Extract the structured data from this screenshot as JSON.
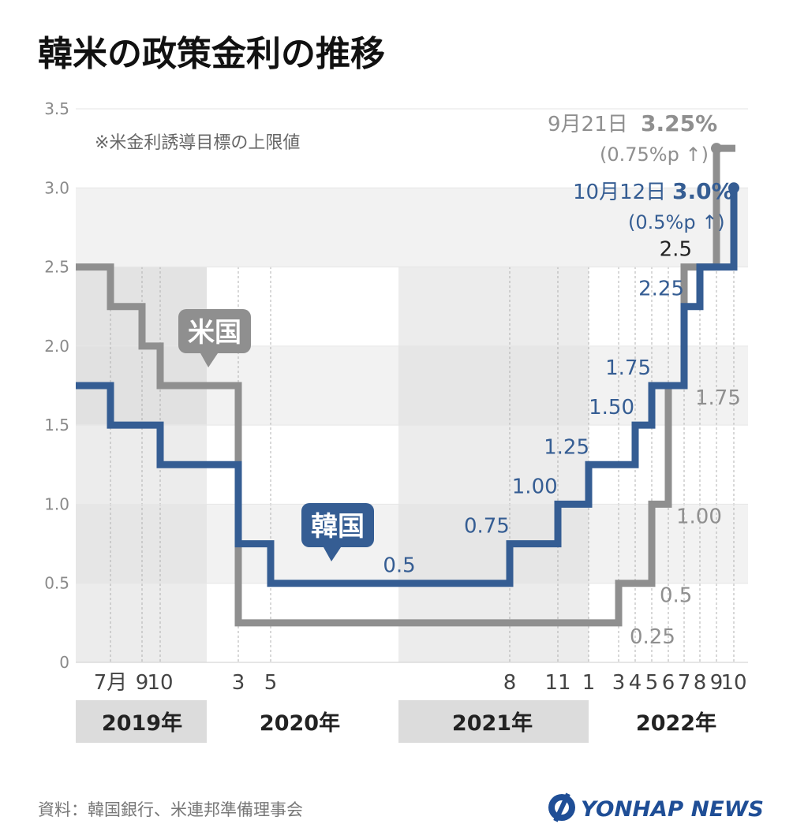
{
  "header": {
    "title": "韓米の政策金利の推移",
    "note": "※米金利誘導目標の上限値"
  },
  "footer": {
    "source": "資料：韓国銀行、米連邦準備理事会",
    "logo_text": "YONHAP NEWS"
  },
  "colors": {
    "korea": "#355d93",
    "us": "#8f8f8f",
    "band_light": "#f2f2f2",
    "band_shade": "#dcdcdc",
    "axis_text": "#8a8a8a"
  },
  "chart_data": {
    "type": "line",
    "step": "post",
    "x_unit": "month",
    "xlim": [
      "2019-01",
      "2022-10"
    ],
    "ylim": [
      0,
      3.5
    ],
    "y_ticks": [
      "0",
      "0.5",
      "1.0",
      "1.5",
      "2.0",
      "2.5",
      "3.0",
      "3.5"
    ],
    "x_tick_labels": [
      {
        "date": "2019-07",
        "label": "7月"
      },
      {
        "date": "2019-09",
        "label": "9"
      },
      {
        "date": "2019-10",
        "label": "10"
      },
      {
        "date": "2020-03",
        "label": "3"
      },
      {
        "date": "2020-05",
        "label": "5"
      },
      {
        "date": "2021-08",
        "label": "8"
      },
      {
        "date": "2021-11",
        "label": "11"
      },
      {
        "date": "2022-01",
        "label": "1"
      },
      {
        "date": "2022-03",
        "label": "3"
      },
      {
        "date": "2022-04",
        "label": "4"
      },
      {
        "date": "2022-05",
        "label": "5"
      },
      {
        "date": "2022-06",
        "label": "6"
      },
      {
        "date": "2022-07",
        "label": "7"
      },
      {
        "date": "2022-08",
        "label": "8"
      },
      {
        "date": "2022-09",
        "label": "9"
      },
      {
        "date": "2022-10",
        "label": "10"
      }
    ],
    "year_labels": [
      {
        "year": "2019年",
        "from": "2019-01",
        "to": "2019-12"
      },
      {
        "year": "2020年",
        "from": "2020-01",
        "to": "2020-12"
      },
      {
        "year": "2021年",
        "from": "2021-01",
        "to": "2021-12"
      },
      {
        "year": "2022年",
        "from": "2022-01",
        "to": "2022-10"
      }
    ],
    "series": [
      {
        "name": "米国",
        "points": [
          {
            "x": "2019-01",
            "y": 2.5
          },
          {
            "x": "2019-07",
            "y": 2.25
          },
          {
            "x": "2019-09",
            "y": 2.0
          },
          {
            "x": "2019-10",
            "y": 1.75
          },
          {
            "x": "2020-03",
            "y": 0.25
          },
          {
            "x": "2022-03",
            "y": 0.5
          },
          {
            "x": "2022-05",
            "y": 1.0
          },
          {
            "x": "2022-06",
            "y": 1.75
          },
          {
            "x": "2022-07",
            "y": 2.5
          },
          {
            "x": "2022-09",
            "y": 3.25
          }
        ],
        "labels": [
          {
            "x": "2022-03",
            "y": 0.25,
            "text": "0.25"
          },
          {
            "x": "2022-05",
            "y": 0.5,
            "text": "0.5"
          },
          {
            "x": "2022-06",
            "y": 1.0,
            "text": "1.00"
          },
          {
            "x": "2022-07",
            "y": 1.75,
            "text": "1.75"
          }
        ],
        "end_label": {
          "date": "9月21日",
          "value": "3.25%",
          "change": "(0.75%p ↑)"
        }
      },
      {
        "name": "韓国",
        "points": [
          {
            "x": "2019-01",
            "y": 1.75
          },
          {
            "x": "2019-07",
            "y": 1.5
          },
          {
            "x": "2019-10",
            "y": 1.25
          },
          {
            "x": "2020-03",
            "y": 0.75
          },
          {
            "x": "2020-05",
            "y": 0.5
          },
          {
            "x": "2021-08",
            "y": 0.75
          },
          {
            "x": "2021-11",
            "y": 1.0
          },
          {
            "x": "2022-01",
            "y": 1.25
          },
          {
            "x": "2022-04",
            "y": 1.5
          },
          {
            "x": "2022-05",
            "y": 1.75
          },
          {
            "x": "2022-07",
            "y": 2.25
          },
          {
            "x": "2022-08",
            "y": 2.5
          },
          {
            "x": "2022-10",
            "y": 3.0
          }
        ],
        "labels": [
          {
            "x": "2020-12",
            "y": 0.5,
            "text": "0.5"
          },
          {
            "x": "2021-07",
            "y": 0.75,
            "text": "0.75"
          },
          {
            "x": "2021-10",
            "y": 1.0,
            "text": "1.00"
          },
          {
            "x": "2021-12",
            "y": 1.25,
            "text": "1.25"
          },
          {
            "x": "2022-03",
            "y": 1.5,
            "text": "1.50"
          },
          {
            "x": "2022-04",
            "y": 1.75,
            "text": "1.75"
          },
          {
            "x": "2022-06",
            "y": 2.25,
            "text": "2.25"
          },
          {
            "x": "2022-07",
            "y": 2.5,
            "text": "2.5"
          }
        ],
        "end_label": {
          "date": "10月12日",
          "value": "3.0%",
          "change": "(0.5%p ↑)"
        }
      }
    ]
  }
}
